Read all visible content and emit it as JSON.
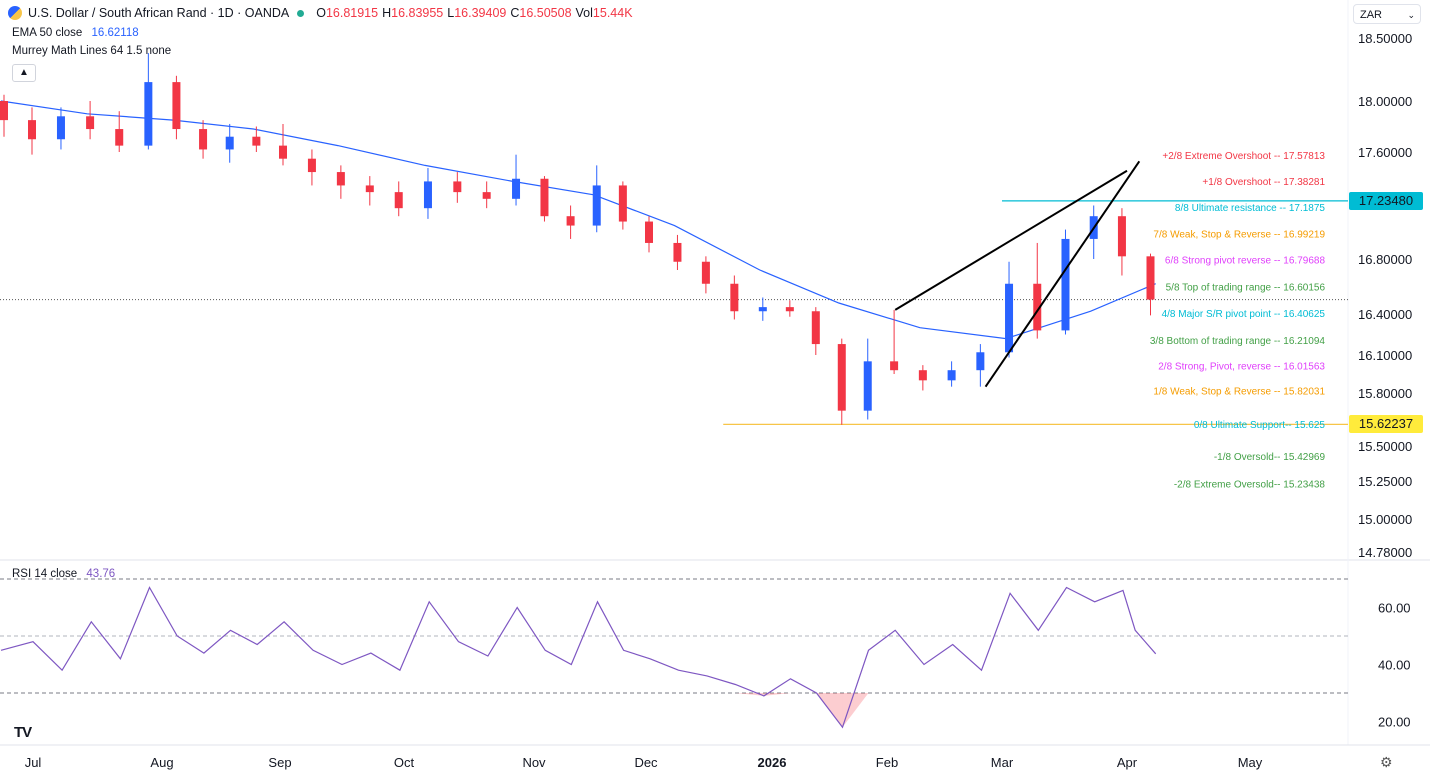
{
  "header": {
    "title": "U.S. Dollar / South African Rand · 1D · OANDA",
    "open_label": "O",
    "open": "16.81915",
    "high_label": "H",
    "high": "16.83955",
    "low_label": "L",
    "low": "16.39409",
    "close_label": "C",
    "close": "16.50508",
    "vol_label": "Vol",
    "vol": "15.44K"
  },
  "indicators": {
    "ema_label": "EMA 50 close",
    "ema_value": "16.62118",
    "murrey_label": "Murrey Math Lines 64 1.5 none",
    "rsi_label": "RSI 14 close",
    "rsi_value": "43.76"
  },
  "currency_selector": "ZAR",
  "collapse_icon": "chevron-up-icon",
  "logo_text": "TV",
  "colors": {
    "up": "#2962ff",
    "down": "#f23645",
    "ema": "#2962ff",
    "rsi": "#7e57c2",
    "cyan": "#00bcd4",
    "yellow": "#ffeb3b",
    "trendline": "#000000"
  },
  "chart_data": [
    {
      "type": "candlestick",
      "title": "U.S. Dollar / South African Rand · 1D · OANDA",
      "y_ticks": [
        "18.50000",
        "18.00000",
        "17.60000",
        "16.80000",
        "16.40000",
        "16.10000",
        "15.80000",
        "15.50000",
        "15.25000",
        "15.00000",
        "14.78000"
      ],
      "y_tick_values": [
        18.5,
        18.0,
        17.6,
        16.8,
        16.4,
        16.1,
        15.8,
        15.5,
        15.25,
        15.0,
        14.78
      ],
      "x_ticks": [
        "Jul",
        "Aug",
        "Sep",
        "Oct",
        "Nov",
        "Dec",
        "2026",
        "Feb",
        "Mar",
        "Apr",
        "May"
      ],
      "price_tags": [
        {
          "value": "17.23480",
          "color": "#00bcd4",
          "text_color": "#131722"
        },
        {
          "value": "15.62237",
          "color": "#ffeb3b",
          "text_color": "#131722"
        }
      ],
      "current_price": 16.505,
      "horizontal_lines": [
        {
          "price": 17.2348,
          "from": "2026-03-01",
          "color": "#00bcd4"
        },
        {
          "price": 15.62237,
          "from": "2025-12-20",
          "color": "#f7c548"
        }
      ],
      "murrey_levels": [
        {
          "label": "+2/8 Extreme Overshoot -- ",
          "value": "17.57813",
          "price": 17.57813,
          "color": "#f23645"
        },
        {
          "label": "+1/8 Overshoot -- ",
          "value": "17.38281",
          "price": 17.38281,
          "color": "#f23645"
        },
        {
          "label": "8/8 Ultimate resistance -- ",
          "value": "17.1875",
          "price": 17.1875,
          "color": "#00bcd4"
        },
        {
          "label": "7/8 Weak, Stop & Reverse -- ",
          "value": "16.99219",
          "price": 16.99219,
          "color": "#f59c00"
        },
        {
          "label": "6/8 Strong pivot reverse -- ",
          "value": "16.79688",
          "price": 16.79688,
          "color": "#e040fb"
        },
        {
          "label": "5/8 Top of trading range -- ",
          "value": "16.60156",
          "price": 16.60156,
          "color": "#43a047"
        },
        {
          "label": "4/8 Major S/R pivot point -- ",
          "value": "16.40625",
          "price": 16.40625,
          "color": "#00bcd4"
        },
        {
          "label": "3/8 Bottom of trading range -- ",
          "value": "16.21094",
          "price": 16.21094,
          "color": "#43a047"
        },
        {
          "label": "2/8 Strong, Pivot, reverse -- ",
          "value": "16.01563",
          "price": 16.01563,
          "color": "#e040fb"
        },
        {
          "label": "1/8 Weak, Stop & Reverse -- ",
          "value": "15.82031",
          "price": 15.82031,
          "color": "#f59c00"
        },
        {
          "label": "0/8 Ultimate Support-- ",
          "value": "15.625",
          "price": 15.625,
          "color": "#00bcd4"
        },
        {
          "label": "-1/8 Oversold-- ",
          "value": "15.42969",
          "price": 15.42969,
          "color": "#43a047"
        },
        {
          "label": "-2/8 Extreme Oversold-- ",
          "value": "15.23438",
          "price": 15.23438,
          "color": "#43a047"
        }
      ],
      "trendlines": [
        {
          "points": [
            [
              "2026-02-03",
              16.43
            ],
            [
              "2026-04-01",
              17.46
            ]
          ]
        },
        {
          "points": [
            [
              "2026-02-25",
              15.85
            ],
            [
              "2026-04-04",
              17.53
            ]
          ]
        }
      ],
      "ohlc_weekly": [
        {
          "t": "2025-06-23",
          "o": 18.0,
          "h": 18.05,
          "l": 17.72,
          "c": 17.85
        },
        {
          "t": "2025-06-30",
          "o": 17.85,
          "h": 17.95,
          "l": 17.58,
          "c": 17.7
        },
        {
          "t": "2025-07-07",
          "o": 17.7,
          "h": 17.95,
          "l": 17.62,
          "c": 17.88
        },
        {
          "t": "2025-07-14",
          "o": 17.88,
          "h": 18.0,
          "l": 17.7,
          "c": 17.78
        },
        {
          "t": "2025-07-21",
          "o": 17.78,
          "h": 17.92,
          "l": 17.6,
          "c": 17.65
        },
        {
          "t": "2025-07-28",
          "o": 17.65,
          "h": 18.38,
          "l": 17.62,
          "c": 18.15
        },
        {
          "t": "2025-08-04",
          "o": 18.15,
          "h": 18.2,
          "l": 17.7,
          "c": 17.78
        },
        {
          "t": "2025-08-11",
          "o": 17.78,
          "h": 17.85,
          "l": 17.55,
          "c": 17.62
        },
        {
          "t": "2025-08-18",
          "o": 17.62,
          "h": 17.82,
          "l": 17.52,
          "c": 17.72
        },
        {
          "t": "2025-08-25",
          "o": 17.72,
          "h": 17.8,
          "l": 17.6,
          "c": 17.65
        },
        {
          "t": "2025-09-01",
          "o": 17.65,
          "h": 17.82,
          "l": 17.5,
          "c": 17.55
        },
        {
          "t": "2025-09-08",
          "o": 17.55,
          "h": 17.62,
          "l": 17.35,
          "c": 17.45
        },
        {
          "t": "2025-09-15",
          "o": 17.45,
          "h": 17.5,
          "l": 17.25,
          "c": 17.35
        },
        {
          "t": "2025-09-22",
          "o": 17.35,
          "h": 17.42,
          "l": 17.2,
          "c": 17.3
        },
        {
          "t": "2025-09-29",
          "o": 17.3,
          "h": 17.38,
          "l": 17.12,
          "c": 17.18
        },
        {
          "t": "2025-10-06",
          "o": 17.18,
          "h": 17.48,
          "l": 17.1,
          "c": 17.38
        },
        {
          "t": "2025-10-13",
          "o": 17.38,
          "h": 17.45,
          "l": 17.22,
          "c": 17.3
        },
        {
          "t": "2025-10-20",
          "o": 17.3,
          "h": 17.38,
          "l": 17.18,
          "c": 17.25
        },
        {
          "t": "2025-10-27",
          "o": 17.25,
          "h": 17.58,
          "l": 17.2,
          "c": 17.4
        },
        {
          "t": "2025-11-03",
          "o": 17.4,
          "h": 17.42,
          "l": 17.08,
          "c": 17.12
        },
        {
          "t": "2025-11-10",
          "o": 17.12,
          "h": 17.2,
          "l": 16.95,
          "c": 17.05
        },
        {
          "t": "2025-11-17",
          "o": 17.05,
          "h": 17.5,
          "l": 17.0,
          "c": 17.35
        },
        {
          "t": "2025-11-24",
          "o": 17.35,
          "h": 17.38,
          "l": 17.02,
          "c": 17.08
        },
        {
          "t": "2025-12-01",
          "o": 17.08,
          "h": 17.12,
          "l": 16.85,
          "c": 16.92
        },
        {
          "t": "2025-12-08",
          "o": 16.92,
          "h": 16.98,
          "l": 16.72,
          "c": 16.78
        },
        {
          "t": "2025-12-15",
          "o": 16.78,
          "h": 16.82,
          "l": 16.55,
          "c": 16.62
        },
        {
          "t": "2025-12-22",
          "o": 16.62,
          "h": 16.68,
          "l": 16.36,
          "c": 16.42
        },
        {
          "t": "2025-12-29",
          "o": 16.42,
          "h": 16.52,
          "l": 16.35,
          "c": 16.45
        },
        {
          "t": "2026-01-05",
          "o": 16.45,
          "h": 16.5,
          "l": 16.38,
          "c": 16.42
        },
        {
          "t": "2026-01-12",
          "o": 16.42,
          "h": 16.45,
          "l": 16.1,
          "c": 16.18
        },
        {
          "t": "2026-01-19",
          "o": 16.18,
          "h": 16.22,
          "l": 15.62,
          "c": 15.7
        },
        {
          "t": "2026-01-26",
          "o": 15.7,
          "h": 16.22,
          "l": 15.65,
          "c": 16.05
        },
        {
          "t": "2026-02-02",
          "o": 16.05,
          "h": 16.43,
          "l": 15.95,
          "c": 15.98
        },
        {
          "t": "2026-02-09",
          "o": 15.98,
          "h": 16.02,
          "l": 15.82,
          "c": 15.9
        },
        {
          "t": "2026-02-16",
          "o": 15.9,
          "h": 16.05,
          "l": 15.85,
          "c": 15.98
        },
        {
          "t": "2026-02-23",
          "o": 15.98,
          "h": 16.18,
          "l": 15.85,
          "c": 16.12
        },
        {
          "t": "2026-03-02",
          "o": 16.12,
          "h": 16.78,
          "l": 16.08,
          "c": 16.62
        },
        {
          "t": "2026-03-09",
          "o": 16.62,
          "h": 16.92,
          "l": 16.22,
          "c": 16.28
        },
        {
          "t": "2026-03-16",
          "o": 16.28,
          "h": 17.02,
          "l": 16.25,
          "c": 16.95
        },
        {
          "t": "2026-03-23",
          "o": 16.95,
          "h": 17.2,
          "l": 16.8,
          "c": 17.12
        },
        {
          "t": "2026-03-30",
          "o": 17.12,
          "h": 17.18,
          "l": 16.68,
          "c": 16.82
        },
        {
          "t": "2026-04-06",
          "o": 16.82,
          "h": 16.84,
          "l": 16.39,
          "c": 16.505
        }
      ],
      "ema_50": [
        [
          "2025-06-23",
          18.0
        ],
        [
          "2025-07-14",
          17.9
        ],
        [
          "2025-08-04",
          17.85
        ],
        [
          "2025-08-25",
          17.78
        ],
        [
          "2025-09-15",
          17.65
        ],
        [
          "2025-10-06",
          17.5
        ],
        [
          "2025-10-27",
          17.38
        ],
        [
          "2025-11-17",
          17.28
        ],
        [
          "2025-12-08",
          17.05
        ],
        [
          "2025-12-29",
          16.72
        ],
        [
          "2026-01-19",
          16.48
        ],
        [
          "2026-02-09",
          16.3
        ],
        [
          "2026-03-02",
          16.22
        ],
        [
          "2026-03-23",
          16.42
        ],
        [
          "2026-04-08",
          16.62
        ]
      ]
    },
    {
      "type": "line",
      "title": "RSI 14 close",
      "y_ticks": [
        "60.00",
        "40.00",
        "20.00"
      ],
      "y_tick_values": [
        60,
        40,
        20
      ],
      "bands": [
        70,
        50,
        30
      ],
      "series": [
        {
          "name": "RSI 14 close",
          "points": [
            [
              "2025-06-23",
              45
            ],
            [
              "2025-07-01",
              48
            ],
            [
              "2025-07-08",
              38
            ],
            [
              "2025-07-15",
              55
            ],
            [
              "2025-07-22",
              42
            ],
            [
              "2025-07-29",
              67
            ],
            [
              "2025-08-05",
              50
            ],
            [
              "2025-08-12",
              44
            ],
            [
              "2025-08-19",
              52
            ],
            [
              "2025-08-26",
              47
            ],
            [
              "2025-09-02",
              55
            ],
            [
              "2025-09-09",
              45
            ],
            [
              "2025-09-16",
              40
            ],
            [
              "2025-09-23",
              44
            ],
            [
              "2025-09-30",
              38
            ],
            [
              "2025-10-07",
              62
            ],
            [
              "2025-10-14",
              48
            ],
            [
              "2025-10-21",
              43
            ],
            [
              "2025-10-28",
              60
            ],
            [
              "2025-11-04",
              45
            ],
            [
              "2025-11-11",
              40
            ],
            [
              "2025-11-18",
              62
            ],
            [
              "2025-11-25",
              45
            ],
            [
              "2025-12-02",
              42
            ],
            [
              "2025-12-09",
              38
            ],
            [
              "2025-12-16",
              36
            ],
            [
              "2025-12-23",
              33
            ],
            [
              "2025-12-30",
              29
            ],
            [
              "2026-01-06",
              35
            ],
            [
              "2026-01-13",
              30
            ],
            [
              "2026-01-20",
              18
            ],
            [
              "2026-01-27",
              45
            ],
            [
              "2026-02-03",
              52
            ],
            [
              "2026-02-10",
              40
            ],
            [
              "2026-02-17",
              47
            ],
            [
              "2026-02-24",
              38
            ],
            [
              "2026-03-03",
              65
            ],
            [
              "2026-03-10",
              52
            ],
            [
              "2026-03-17",
              67
            ],
            [
              "2026-03-24",
              62
            ],
            [
              "2026-03-31",
              66
            ],
            [
              "2026-04-03",
              52
            ],
            [
              "2026-04-08",
              43.76
            ]
          ]
        }
      ]
    }
  ]
}
